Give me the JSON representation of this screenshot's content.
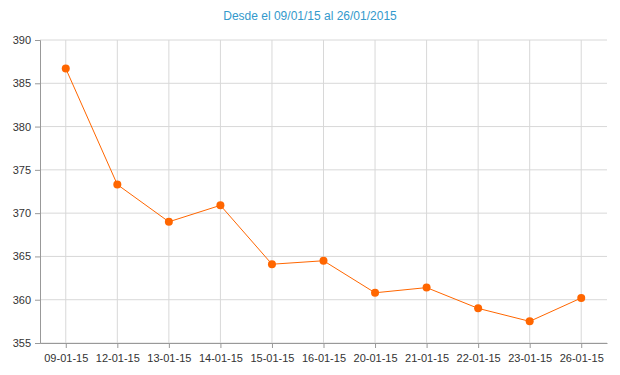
{
  "chart_data": {
    "type": "line",
    "title": "Desde el 09/01/15 al 26/01/2015",
    "categories": [
      "09-01-15",
      "12-01-15",
      "13-01-15",
      "14-01-15",
      "15-01-15",
      "16-01-15",
      "20-01-15",
      "21-01-15",
      "22-01-15",
      "23-01-15",
      "26-01-15"
    ],
    "values": [
      386.7,
      373.3,
      369.0,
      370.9,
      364.1,
      364.5,
      360.8,
      361.4,
      359.0,
      357.5,
      360.2
    ],
    "color": "#ff6600",
    "marker": "circle",
    "ylim": [
      355,
      390
    ],
    "yticks": [
      355,
      360,
      365,
      370,
      375,
      380,
      385,
      390
    ],
    "grid": true
  }
}
